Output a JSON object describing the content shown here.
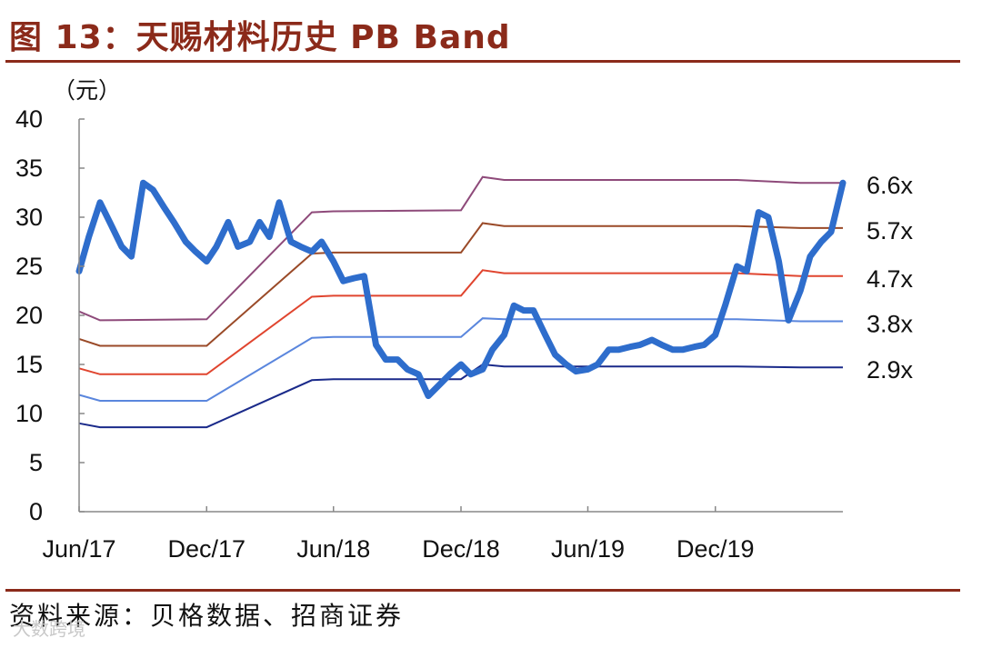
{
  "header": {
    "title": "图 13：天赐材料历史 PB Band"
  },
  "footer": {
    "source": "资料来源：贝格数据、招商证券",
    "watermark": "大数跨境"
  },
  "chart_data": {
    "type": "line",
    "title": "图 13：天赐材料历史 PB Band",
    "ylabel": "（元）",
    "xlabel": "",
    "ylim": [
      0,
      40
    ],
    "yticks": [
      0,
      5,
      10,
      15,
      20,
      25,
      30,
      35,
      40
    ],
    "xlim": [
      "2017-06",
      "2020-06"
    ],
    "xticks": [
      "Jun/17",
      "Dec/17",
      "Jun/18",
      "Dec/18",
      "Jun/19",
      "Dec/19"
    ],
    "grid": false,
    "legend": "labels at right end of each band line",
    "colors": {
      "price": "#2e6dcc",
      "band_6_6x": "#8e4a7a",
      "band_5_7x": "#9a4a28",
      "band_4_7x": "#e0452f",
      "band_3_8x": "#5a86dd",
      "band_2_9x": "#1a2a8a"
    },
    "series": [
      {
        "name": "6.6x",
        "x": [
          "2017-06",
          "2017-07",
          "2017-12",
          "2018-05",
          "2018-06",
          "2018-12",
          "2019-01",
          "2019-02",
          "2020-01",
          "2020-04",
          "2020-06"
        ],
        "values": [
          20.4,
          19.5,
          19.6,
          30.5,
          30.6,
          30.7,
          34.1,
          33.8,
          33.8,
          33.5,
          33.5
        ]
      },
      {
        "name": "5.7x",
        "x": [
          "2017-06",
          "2017-07",
          "2017-12",
          "2018-05",
          "2018-06",
          "2018-12",
          "2019-01",
          "2019-02",
          "2020-01",
          "2020-04",
          "2020-06"
        ],
        "values": [
          17.6,
          16.9,
          16.9,
          26.3,
          26.4,
          26.4,
          29.4,
          29.1,
          29.1,
          28.9,
          28.9
        ]
      },
      {
        "name": "4.7x",
        "x": [
          "2017-06",
          "2017-07",
          "2017-12",
          "2018-05",
          "2018-06",
          "2018-12",
          "2019-01",
          "2019-02",
          "2020-01",
          "2020-04",
          "2020-06"
        ],
        "values": [
          14.6,
          14.0,
          14.0,
          21.9,
          22.0,
          22.0,
          24.6,
          24.3,
          24.3,
          24.0,
          24.0
        ]
      },
      {
        "name": "3.8x",
        "x": [
          "2017-06",
          "2017-07",
          "2017-12",
          "2018-05",
          "2018-06",
          "2018-12",
          "2019-01",
          "2019-02",
          "2020-01",
          "2020-04",
          "2020-06"
        ],
        "values": [
          11.9,
          11.3,
          11.3,
          17.7,
          17.8,
          17.8,
          19.7,
          19.6,
          19.6,
          19.4,
          19.4
        ]
      },
      {
        "name": "2.9x",
        "x": [
          "2017-06",
          "2017-07",
          "2017-12",
          "2018-05",
          "2018-06",
          "2018-12",
          "2019-01",
          "2019-02",
          "2020-01",
          "2020-04",
          "2020-06"
        ],
        "values": [
          9.0,
          8.6,
          8.6,
          13.4,
          13.5,
          13.5,
          15.0,
          14.8,
          14.8,
          14.7,
          14.7
        ]
      },
      {
        "name": "",
        "x": [
          "2017-06-01",
          "2017-06-15",
          "2017-07-01",
          "2017-07-15",
          "2017-08-01",
          "2017-08-15",
          "2017-09-01",
          "2017-09-15",
          "2017-10-01",
          "2017-10-15",
          "2017-11-01",
          "2017-11-15",
          "2017-12-01",
          "2017-12-15",
          "2018-01-01",
          "2018-01-15",
          "2018-02-01",
          "2018-02-15",
          "2018-03-01",
          "2018-03-15",
          "2018-04-01",
          "2018-04-15",
          "2018-05-01",
          "2018-05-15",
          "2018-06-01",
          "2018-06-15",
          "2018-07-01",
          "2018-07-15",
          "2018-08-01",
          "2018-08-15",
          "2018-09-01",
          "2018-09-15",
          "2018-10-01",
          "2018-10-15",
          "2018-11-01",
          "2018-11-15",
          "2018-12-01",
          "2018-12-15",
          "2019-01-01",
          "2019-01-15",
          "2019-02-01",
          "2019-02-15",
          "2019-03-01",
          "2019-03-15",
          "2019-04-01",
          "2019-04-15",
          "2019-05-01",
          "2019-05-15",
          "2019-06-01",
          "2019-06-15",
          "2019-07-01",
          "2019-07-15",
          "2019-08-01",
          "2019-08-15",
          "2019-09-01",
          "2019-09-15",
          "2019-10-01",
          "2019-10-15",
          "2019-11-01",
          "2019-11-15",
          "2019-12-01",
          "2019-12-15",
          "2020-01-01",
          "2020-01-15",
          "2020-02-01",
          "2020-02-15",
          "2020-03-01",
          "2020-03-15",
          "2020-04-01",
          "2020-04-15",
          "2020-05-01",
          "2020-05-15",
          "2020-06-01"
        ],
        "values": [
          24.5,
          28.0,
          31.5,
          29.5,
          27.0,
          26.0,
          33.5,
          32.8,
          31.0,
          29.5,
          27.5,
          26.5,
          25.5,
          27.0,
          29.5,
          27.0,
          27.5,
          29.5,
          28.0,
          31.5,
          27.5,
          27.0,
          26.5,
          27.5,
          25.5,
          23.5,
          23.8,
          24.0,
          17.0,
          15.5,
          15.5,
          14.5,
          14.0,
          11.8,
          13.0,
          14.0,
          15.0,
          14.0,
          14.5,
          16.5,
          18.0,
          21.0,
          20.5,
          20.5,
          18.0,
          16.0,
          15.0,
          14.3,
          14.5,
          15.0,
          16.5,
          16.5,
          16.8,
          17.0,
          17.5,
          17.0,
          16.5,
          16.5,
          16.8,
          17.0,
          18.0,
          21.0,
          25.0,
          24.5,
          30.5,
          30.0,
          25.5,
          19.5,
          22.5,
          26.0,
          27.5,
          28.5,
          33.5
        ]
      }
    ]
  }
}
